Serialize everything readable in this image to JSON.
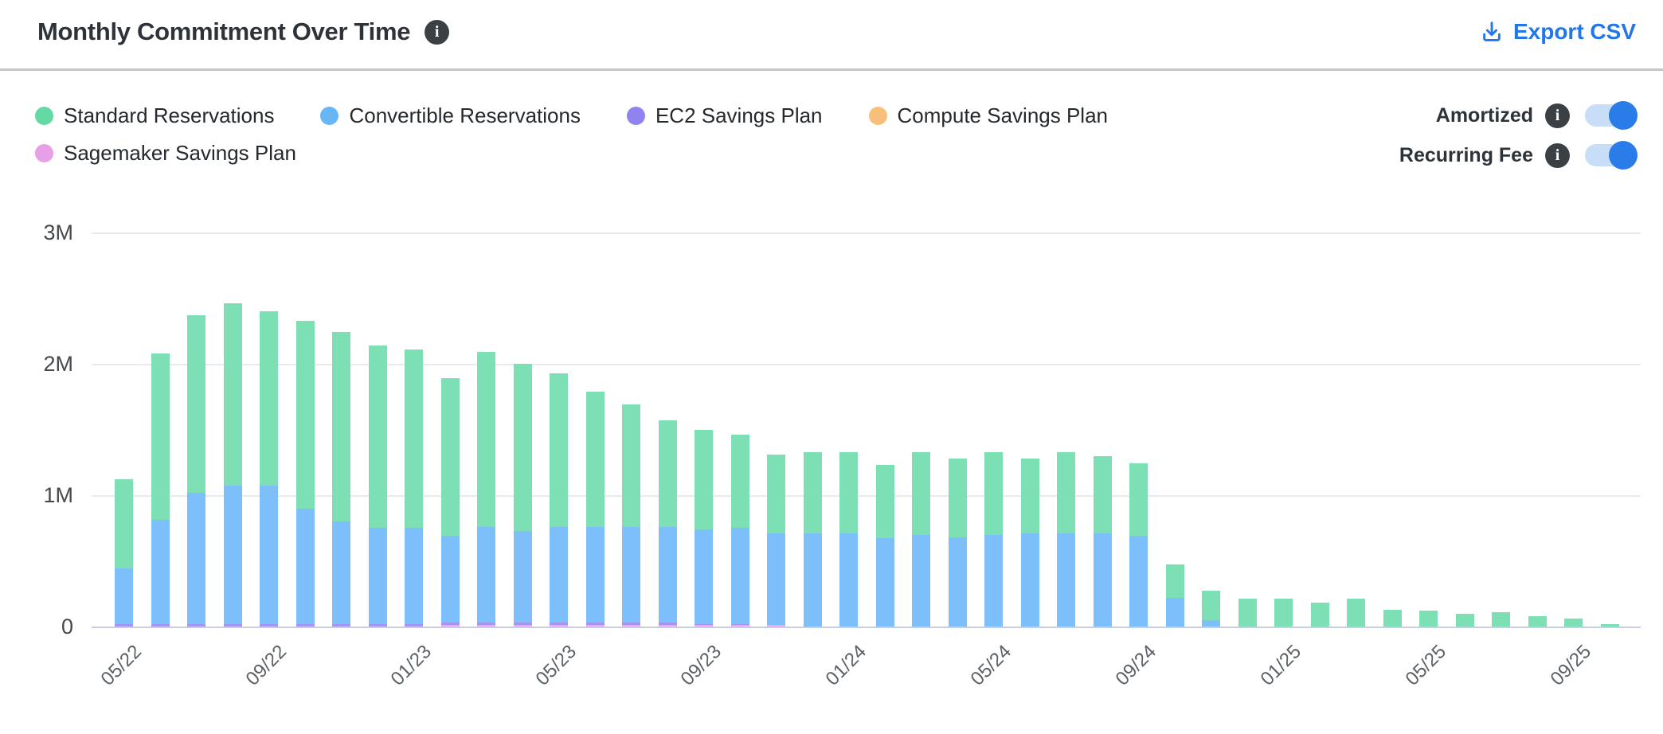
{
  "header": {
    "title": "Monthly Commitment Over Time",
    "title_info_icon": "info-icon",
    "export_label": "Export CSV",
    "export_color": "#2276e9"
  },
  "legend": {
    "items": [
      {
        "label": "Standard Reservations",
        "color": "#63d9a4"
      },
      {
        "label": "Convertible Reservations",
        "color": "#67b7f7"
      },
      {
        "label": "EC2 Savings Plan",
        "color": "#9083ef"
      },
      {
        "label": "Compute Savings Plan",
        "color": "#f6c07c"
      },
      {
        "label": "Sagemaker Savings Plan",
        "color": "#e79fe6"
      }
    ]
  },
  "toggles": [
    {
      "label": "Amortized",
      "state": "on"
    },
    {
      "label": "Recurring Fee",
      "state": "on"
    }
  ],
  "toggle_colors": {
    "track": "#c7ddf8",
    "knob": "#2a7de8"
  },
  "chart_data": {
    "type": "bar",
    "stacked": true,
    "title": "Monthly Commitment Over Time",
    "xlabel": "",
    "ylabel": "",
    "ylim": [
      0,
      3
    ],
    "values_unit": "millions",
    "y_ticks": [
      "3M",
      "2M",
      "1M",
      "0"
    ],
    "grid": "horizontal",
    "legend_position": "top-left",
    "x_tick_every": 4,
    "categories": [
      "05/22",
      "06/22",
      "07/22",
      "08/22",
      "09/22",
      "10/22",
      "11/22",
      "12/22",
      "01/23",
      "02/23",
      "03/23",
      "04/23",
      "05/23",
      "06/23",
      "07/23",
      "08/23",
      "09/23",
      "10/23",
      "11/23",
      "12/23",
      "01/24",
      "02/24",
      "03/24",
      "04/24",
      "05/24",
      "06/24",
      "07/24",
      "08/24",
      "09/24",
      "10/24",
      "11/24",
      "12/24",
      "01/25",
      "02/25",
      "03/25",
      "04/25",
      "05/25",
      "06/25",
      "07/25",
      "08/25",
      "09/25",
      "10/25"
    ],
    "x_tick_labels_shown": [
      "05/22",
      "09/22",
      "01/23",
      "05/23",
      "09/23",
      "01/24",
      "05/24",
      "09/24",
      "01/25",
      "05/25",
      "09/25"
    ],
    "stack_order_bottom_to_top": [
      "Sagemaker Savings Plan",
      "EC2 Savings Plan",
      "Convertible Reservations",
      "Standard Reservations",
      "Compute Savings Plan"
    ],
    "series": [
      {
        "name": "Standard Reservations",
        "color": "#7de0b4",
        "values": [
          0.68,
          1.27,
          1.35,
          1.39,
          1.33,
          1.43,
          1.44,
          1.39,
          1.36,
          1.2,
          1.33,
          1.27,
          1.17,
          1.03,
          0.93,
          0.81,
          0.76,
          0.71,
          0.6,
          0.62,
          0.62,
          0.56,
          0.63,
          0.6,
          0.63,
          0.57,
          0.62,
          0.59,
          0.55,
          0.25,
          0.22,
          0.21,
          0.21,
          0.18,
          0.21,
          0.13,
          0.12,
          0.1,
          0.11,
          0.08,
          0.06,
          0.02
        ]
      },
      {
        "name": "Convertible Reservations",
        "color": "#7dbffa",
        "values": [
          0.42,
          0.79,
          1.0,
          1.05,
          1.05,
          0.88,
          0.78,
          0.73,
          0.73,
          0.66,
          0.73,
          0.7,
          0.73,
          0.73,
          0.73,
          0.73,
          0.72,
          0.73,
          0.7,
          0.71,
          0.71,
          0.67,
          0.7,
          0.68,
          0.7,
          0.71,
          0.71,
          0.71,
          0.69,
          0.22,
          0.05,
          0,
          0,
          0,
          0,
          0,
          0,
          0,
          0,
          0,
          0,
          0
        ]
      },
      {
        "name": "EC2 Savings Plan",
        "color": "#a495f3",
        "values": [
          0.02,
          0.02,
          0.02,
          0.02,
          0.02,
          0.02,
          0.02,
          0.02,
          0.02,
          0.02,
          0.02,
          0.02,
          0.02,
          0.02,
          0.02,
          0.02,
          0.01,
          0.01,
          0,
          0,
          0,
          0,
          0,
          0,
          0,
          0,
          0,
          0,
          0,
          0,
          0,
          0,
          0,
          0,
          0,
          0,
          0,
          0,
          0,
          0,
          0,
          0
        ]
      },
      {
        "name": "Compute Savings Plan",
        "color": "#f6c07c",
        "values": [
          0,
          0,
          0,
          0,
          0,
          0,
          0,
          0,
          0,
          0,
          0,
          0,
          0,
          0,
          0,
          0,
          0,
          0,
          0,
          0,
          0,
          0,
          0,
          0,
          0,
          0,
          0,
          0,
          0,
          0,
          0,
          0,
          0,
          0,
          0,
          0,
          0,
          0,
          0,
          0,
          0,
          0
        ]
      },
      {
        "name": "Sagemaker Savings Plan",
        "color": "#eeaaec",
        "values": [
          0,
          0,
          0,
          0,
          0,
          0,
          0,
          0,
          0,
          0.01,
          0.01,
          0.01,
          0.01,
          0.01,
          0.01,
          0.01,
          0.01,
          0.01,
          0.01,
          0,
          0,
          0,
          0,
          0,
          0,
          0,
          0,
          0,
          0,
          0,
          0,
          0,
          0,
          0,
          0,
          0,
          0,
          0,
          0,
          0,
          0,
          0
        ]
      }
    ]
  }
}
